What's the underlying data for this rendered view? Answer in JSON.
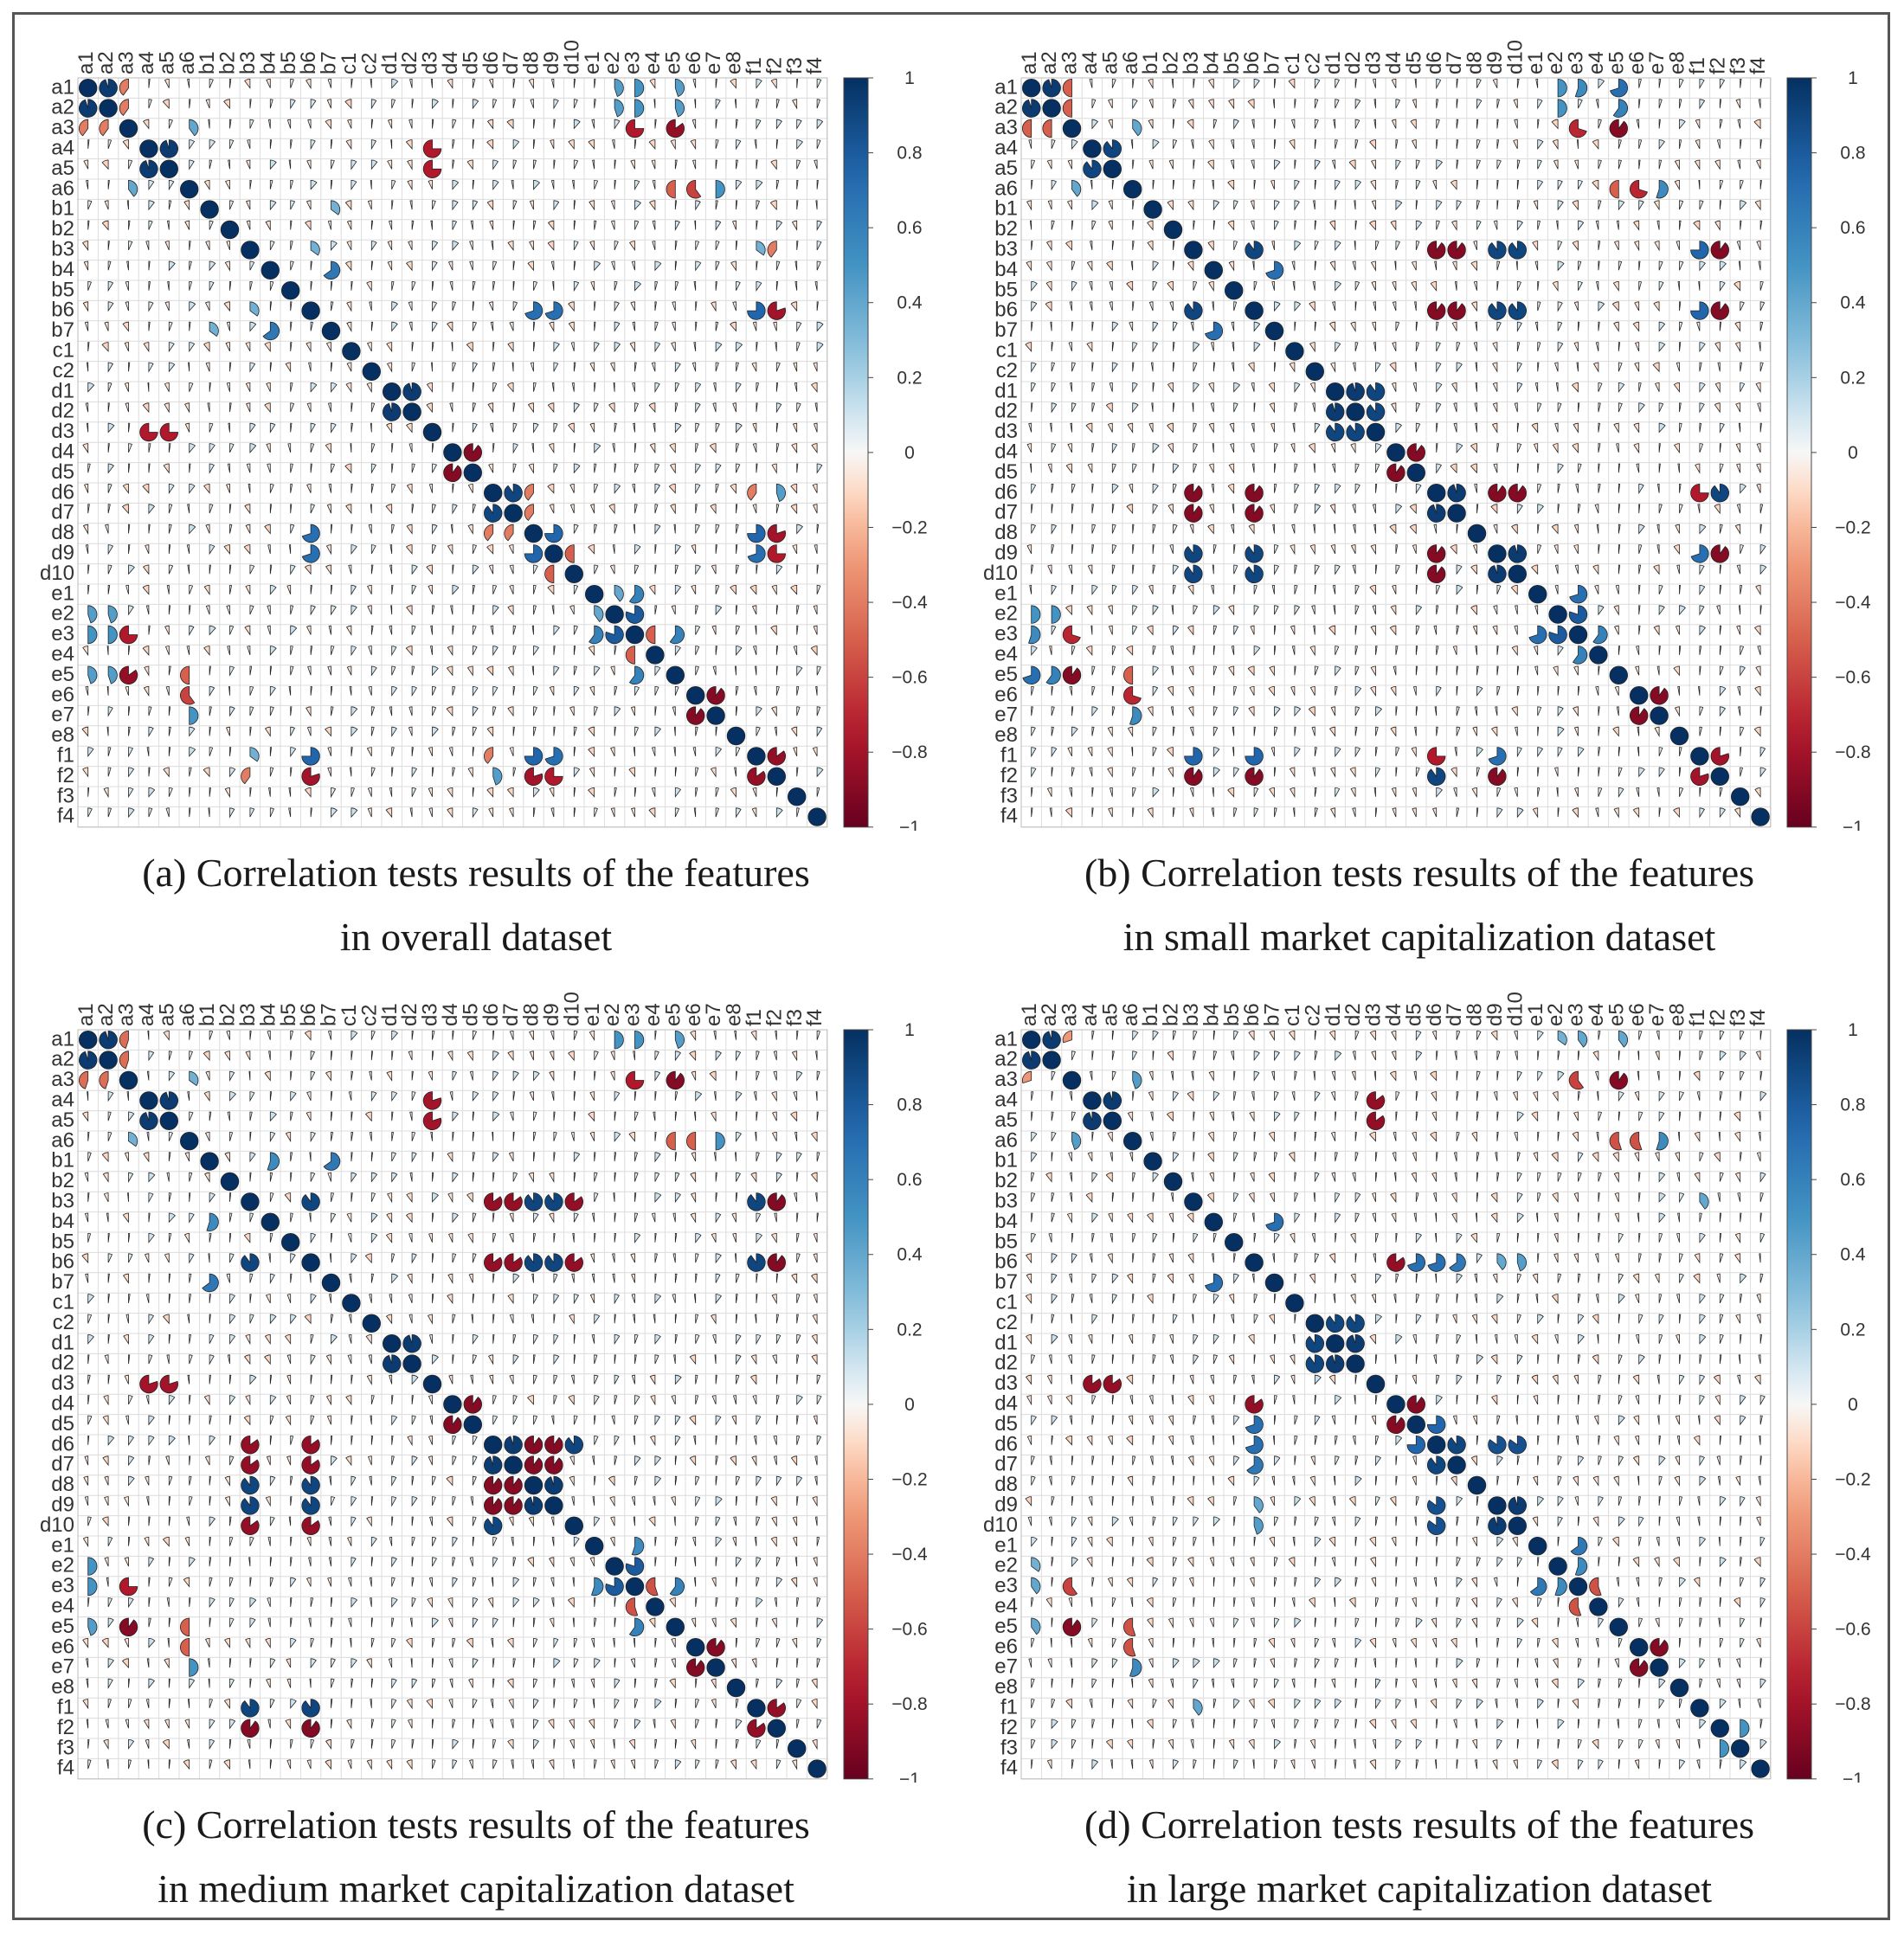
{
  "figure": {
    "features": [
      "a1",
      "a2",
      "a3",
      "a4",
      "a5",
      "a6",
      "b1",
      "b2",
      "b3",
      "b4",
      "b5",
      "b6",
      "b7",
      "c1",
      "c2",
      "d1",
      "d2",
      "d3",
      "d4",
      "d5",
      "d6",
      "d7",
      "d8",
      "d9",
      "d10",
      "e1",
      "e2",
      "e3",
      "e4",
      "e5",
      "e6",
      "e7",
      "e8",
      "f1",
      "f2",
      "f3",
      "f4"
    ],
    "colorbar_ticks": [
      "1",
      "0.8",
      "0.6",
      "0.4",
      "0.2",
      "0",
      "−0.2",
      "−0.4",
      "−0.6",
      "−0.8",
      "−1"
    ],
    "colorbar_colors": {
      "positive": "#053061",
      "neutral": "#f7f7f7",
      "negative": "#67001f"
    }
  },
  "chart_data": [
    {
      "type": "heatmap",
      "id": "a",
      "caption_line1": "(a) Correlation tests results of the features",
      "caption_line2": "in overall dataset",
      "value_range": [
        -1,
        1
      ],
      "correlations": [
        {
          "row": "a1",
          "col": "a2",
          "value": 0.95
        },
        {
          "row": "a1",
          "col": "a3",
          "value": -0.4
        },
        {
          "row": "a1",
          "col": "e2",
          "value": 0.45
        },
        {
          "row": "a1",
          "col": "e3",
          "value": 0.5
        },
        {
          "row": "a1",
          "col": "e5",
          "value": 0.45
        },
        {
          "row": "a2",
          "col": "a3",
          "value": -0.4
        },
        {
          "row": "a2",
          "col": "e2",
          "value": 0.45
        },
        {
          "row": "a2",
          "col": "e3",
          "value": 0.5
        },
        {
          "row": "a2",
          "col": "e5",
          "value": 0.45
        },
        {
          "row": "a3",
          "col": "a6",
          "value": 0.4
        },
        {
          "row": "a3",
          "col": "e3",
          "value": -0.75
        },
        {
          "row": "a3",
          "col": "e5",
          "value": -0.85
        },
        {
          "row": "a4",
          "col": "a5",
          "value": 0.95
        },
        {
          "row": "a4",
          "col": "d3",
          "value": -0.75
        },
        {
          "row": "a5",
          "col": "d3",
          "value": -0.75
        },
        {
          "row": "a6",
          "col": "e5",
          "value": -0.5
        },
        {
          "row": "a6",
          "col": "e6",
          "value": -0.6
        },
        {
          "row": "a6",
          "col": "e7",
          "value": 0.5
        },
        {
          "row": "b1",
          "col": "b7",
          "value": 0.35
        },
        {
          "row": "b3",
          "col": "b6",
          "value": 0.35
        },
        {
          "row": "b3",
          "col": "f1",
          "value": 0.35
        },
        {
          "row": "b3",
          "col": "f2",
          "value": -0.4
        },
        {
          "row": "b4",
          "col": "b7",
          "value": 0.65
        },
        {
          "row": "b6",
          "col": "d8",
          "value": 0.7
        },
        {
          "row": "b6",
          "col": "d9",
          "value": 0.7
        },
        {
          "row": "b6",
          "col": "f1",
          "value": 0.75
        },
        {
          "row": "b6",
          "col": "f2",
          "value": -0.8
        },
        {
          "row": "d1",
          "col": "d2",
          "value": 0.95
        },
        {
          "row": "d4",
          "col": "d5",
          "value": -0.9
        },
        {
          "row": "d6",
          "col": "d7",
          "value": 0.9
        },
        {
          "row": "d6",
          "col": "d8",
          "value": -0.4
        },
        {
          "row": "d6",
          "col": "f1",
          "value": -0.4
        },
        {
          "row": "d6",
          "col": "f2",
          "value": 0.45
        },
        {
          "row": "d7",
          "col": "d8",
          "value": -0.4
        },
        {
          "row": "d8",
          "col": "d9",
          "value": 0.75
        },
        {
          "row": "d8",
          "col": "f1",
          "value": 0.75
        },
        {
          "row": "d8",
          "col": "f2",
          "value": -0.8
        },
        {
          "row": "d9",
          "col": "d10",
          "value": -0.5
        },
        {
          "row": "d9",
          "col": "f1",
          "value": 0.7
        },
        {
          "row": "d9",
          "col": "f2",
          "value": -0.75
        },
        {
          "row": "e1",
          "col": "e2",
          "value": 0.4
        },
        {
          "row": "e1",
          "col": "e3",
          "value": 0.6
        },
        {
          "row": "e2",
          "col": "e3",
          "value": 0.8
        },
        {
          "row": "e3",
          "col": "e4",
          "value": -0.5
        },
        {
          "row": "e3",
          "col": "e5",
          "value": 0.6
        },
        {
          "row": "e6",
          "col": "e7",
          "value": -0.9
        },
        {
          "row": "f1",
          "col": "f2",
          "value": -0.85
        }
      ]
    },
    {
      "type": "heatmap",
      "id": "b",
      "caption_line1": "(b) Correlation tests results of the features",
      "caption_line2": "in small market capitalization dataset",
      "value_range": [
        -1,
        1
      ],
      "correlations": [
        {
          "row": "a1",
          "col": "a2",
          "value": 0.95
        },
        {
          "row": "a1",
          "col": "a3",
          "value": -0.5
        },
        {
          "row": "a1",
          "col": "e2",
          "value": 0.5
        },
        {
          "row": "a1",
          "col": "e3",
          "value": 0.55
        },
        {
          "row": "a1",
          "col": "e5",
          "value": 0.7
        },
        {
          "row": "a2",
          "col": "a3",
          "value": -0.5
        },
        {
          "row": "a2",
          "col": "e2",
          "value": 0.5
        },
        {
          "row": "a2",
          "col": "e5",
          "value": 0.6
        },
        {
          "row": "a3",
          "col": "a6",
          "value": 0.4
        },
        {
          "row": "a3",
          "col": "e3",
          "value": -0.7
        },
        {
          "row": "a3",
          "col": "e5",
          "value": -0.9
        },
        {
          "row": "a4",
          "col": "a5",
          "value": 0.9
        },
        {
          "row": "a6",
          "col": "e5",
          "value": -0.5
        },
        {
          "row": "a6",
          "col": "e6",
          "value": -0.7
        },
        {
          "row": "a6",
          "col": "e7",
          "value": 0.55
        },
        {
          "row": "b3",
          "col": "b6",
          "value": 0.9
        },
        {
          "row": "b3",
          "col": "d6",
          "value": -0.9
        },
        {
          "row": "b3",
          "col": "d7",
          "value": -0.9
        },
        {
          "row": "b3",
          "col": "d9",
          "value": 0.9
        },
        {
          "row": "b3",
          "col": "d10",
          "value": 0.9
        },
        {
          "row": "b3",
          "col": "f1",
          "value": 0.75
        },
        {
          "row": "b3",
          "col": "f2",
          "value": -0.9
        },
        {
          "row": "b4",
          "col": "b7",
          "value": 0.7
        },
        {
          "row": "b6",
          "col": "d6",
          "value": -0.9
        },
        {
          "row": "b6",
          "col": "d7",
          "value": -0.9
        },
        {
          "row": "b6",
          "col": "d9",
          "value": 0.9
        },
        {
          "row": "b6",
          "col": "d10",
          "value": 0.9
        },
        {
          "row": "b6",
          "col": "f1",
          "value": 0.75
        },
        {
          "row": "b6",
          "col": "f2",
          "value": -0.9
        },
        {
          "row": "d1",
          "col": "d2",
          "value": 0.95
        },
        {
          "row": "d1",
          "col": "d3",
          "value": 0.9
        },
        {
          "row": "d2",
          "col": "d3",
          "value": 0.9
        },
        {
          "row": "d4",
          "col": "d5",
          "value": -0.9
        },
        {
          "row": "d6",
          "col": "d7",
          "value": 0.95
        },
        {
          "row": "d6",
          "col": "d9",
          "value": -0.9
        },
        {
          "row": "d6",
          "col": "d10",
          "value": -0.9
        },
        {
          "row": "d6",
          "col": "f1",
          "value": -0.75
        },
        {
          "row": "d6",
          "col": "f2",
          "value": 0.9
        },
        {
          "row": "d9",
          "col": "d10",
          "value": 0.95
        },
        {
          "row": "d9",
          "col": "f1",
          "value": 0.7
        },
        {
          "row": "d9",
          "col": "f2",
          "value": -0.9
        },
        {
          "row": "e1",
          "col": "e3",
          "value": 0.7
        },
        {
          "row": "e2",
          "col": "e3",
          "value": 0.8
        },
        {
          "row": "e3",
          "col": "e4",
          "value": 0.6
        },
        {
          "row": "e6",
          "col": "e7",
          "value": -0.9
        },
        {
          "row": "f1",
          "col": "f2",
          "value": -0.8
        }
      ]
    },
    {
      "type": "heatmap",
      "id": "c",
      "caption_line1": "(c) Correlation tests results of the features",
      "caption_line2": "in medium market capitalization dataset",
      "value_range": [
        -1,
        1
      ],
      "correlations": [
        {
          "row": "a1",
          "col": "a2",
          "value": 0.95
        },
        {
          "row": "a1",
          "col": "a3",
          "value": -0.45
        },
        {
          "row": "a1",
          "col": "e2",
          "value": 0.5
        },
        {
          "row": "a1",
          "col": "e3",
          "value": 0.5
        },
        {
          "row": "a1",
          "col": "e5",
          "value": 0.45
        },
        {
          "row": "a2",
          "col": "a3",
          "value": -0.45
        },
        {
          "row": "a3",
          "col": "a6",
          "value": 0.35
        },
        {
          "row": "a3",
          "col": "e3",
          "value": -0.75
        },
        {
          "row": "a3",
          "col": "e5",
          "value": -0.9
        },
        {
          "row": "a4",
          "col": "a5",
          "value": 0.95
        },
        {
          "row": "a4",
          "col": "d3",
          "value": -0.8
        },
        {
          "row": "a5",
          "col": "d3",
          "value": -0.8
        },
        {
          "row": "a6",
          "col": "e5",
          "value": -0.5
        },
        {
          "row": "a6",
          "col": "e6",
          "value": -0.5
        },
        {
          "row": "a6",
          "col": "e7",
          "value": 0.5
        },
        {
          "row": "b1",
          "col": "b4",
          "value": 0.55
        },
        {
          "row": "b1",
          "col": "b7",
          "value": 0.65
        },
        {
          "row": "b3",
          "col": "b6",
          "value": 0.9
        },
        {
          "row": "b3",
          "col": "d6",
          "value": -0.85
        },
        {
          "row": "b3",
          "col": "d7",
          "value": -0.85
        },
        {
          "row": "b3",
          "col": "d8",
          "value": 0.9
        },
        {
          "row": "b3",
          "col": "d9",
          "value": 0.9
        },
        {
          "row": "b3",
          "col": "d10",
          "value": -0.85
        },
        {
          "row": "b3",
          "col": "f1",
          "value": 0.9
        },
        {
          "row": "b3",
          "col": "f2",
          "value": -0.9
        },
        {
          "row": "b6",
          "col": "d6",
          "value": -0.85
        },
        {
          "row": "b6",
          "col": "d7",
          "value": -0.85
        },
        {
          "row": "b6",
          "col": "d8",
          "value": 0.9
        },
        {
          "row": "b6",
          "col": "d9",
          "value": 0.9
        },
        {
          "row": "b6",
          "col": "d10",
          "value": -0.85
        },
        {
          "row": "b6",
          "col": "f1",
          "value": 0.9
        },
        {
          "row": "b6",
          "col": "f2",
          "value": -0.9
        },
        {
          "row": "d1",
          "col": "d2",
          "value": 0.95
        },
        {
          "row": "d4",
          "col": "d5",
          "value": -0.9
        },
        {
          "row": "d6",
          "col": "d7",
          "value": 0.95
        },
        {
          "row": "d6",
          "col": "d8",
          "value": -0.9
        },
        {
          "row": "d6",
          "col": "d9",
          "value": -0.9
        },
        {
          "row": "d6",
          "col": "d10",
          "value": 0.9
        },
        {
          "row": "d7",
          "col": "d8",
          "value": -0.9
        },
        {
          "row": "d7",
          "col": "d9",
          "value": -0.9
        },
        {
          "row": "d8",
          "col": "d9",
          "value": 0.95
        },
        {
          "row": "e1",
          "col": "e3",
          "value": 0.55
        },
        {
          "row": "e2",
          "col": "e3",
          "value": 0.8
        },
        {
          "row": "e3",
          "col": "e4",
          "value": -0.55
        },
        {
          "row": "e3",
          "col": "e5",
          "value": 0.6
        },
        {
          "row": "e6",
          "col": "e7",
          "value": -0.9
        },
        {
          "row": "f1",
          "col": "f2",
          "value": -0.85
        }
      ]
    },
    {
      "type": "heatmap",
      "id": "d",
      "caption_line1": "(d) Correlation tests results of the features",
      "caption_line2": "in large market capitalization dataset",
      "value_range": [
        -1,
        1
      ],
      "correlations": [
        {
          "row": "a1",
          "col": "a2",
          "value": 0.95
        },
        {
          "row": "a1",
          "col": "a3",
          "value": -0.3
        },
        {
          "row": "a1",
          "col": "e2",
          "value": 0.35
        },
        {
          "row": "a1",
          "col": "e3",
          "value": 0.4
        },
        {
          "row": "a1",
          "col": "e5",
          "value": 0.4
        },
        {
          "row": "a3",
          "col": "a6",
          "value": 0.45
        },
        {
          "row": "a3",
          "col": "e3",
          "value": -0.6
        },
        {
          "row": "a3",
          "col": "e5",
          "value": -0.9
        },
        {
          "row": "a4",
          "col": "a5",
          "value": 0.95
        },
        {
          "row": "a4",
          "col": "d3",
          "value": -0.85
        },
        {
          "row": "a5",
          "col": "d3",
          "value": -0.85
        },
        {
          "row": "a6",
          "col": "e5",
          "value": -0.55
        },
        {
          "row": "a6",
          "col": "e6",
          "value": -0.55
        },
        {
          "row": "a6",
          "col": "e7",
          "value": 0.55
        },
        {
          "row": "b3",
          "col": "f1",
          "value": 0.4
        },
        {
          "row": "b4",
          "col": "b7",
          "value": 0.7
        },
        {
          "row": "b6",
          "col": "d4",
          "value": -0.85
        },
        {
          "row": "b6",
          "col": "d5",
          "value": 0.7
        },
        {
          "row": "b6",
          "col": "d6",
          "value": 0.7
        },
        {
          "row": "b6",
          "col": "d7",
          "value": 0.65
        },
        {
          "row": "b6",
          "col": "d9",
          "value": 0.4
        },
        {
          "row": "b6",
          "col": "d10",
          "value": 0.45
        },
        {
          "row": "c2",
          "col": "d1",
          "value": 0.9
        },
        {
          "row": "c2",
          "col": "d2",
          "value": 0.9
        },
        {
          "row": "d1",
          "col": "d2",
          "value": 0.95
        },
        {
          "row": "d4",
          "col": "d5",
          "value": -0.9
        },
        {
          "row": "d5",
          "col": "d6",
          "value": 0.75
        },
        {
          "row": "d6",
          "col": "d7",
          "value": 0.9
        },
        {
          "row": "d6",
          "col": "d9",
          "value": 0.85
        },
        {
          "row": "d6",
          "col": "d10",
          "value": 0.85
        },
        {
          "row": "d9",
          "col": "d10",
          "value": 0.95
        },
        {
          "row": "e1",
          "col": "e3",
          "value": 0.65
        },
        {
          "row": "e2",
          "col": "e3",
          "value": 0.55
        },
        {
          "row": "e3",
          "col": "e4",
          "value": -0.55
        },
        {
          "row": "e6",
          "col": "e7",
          "value": -0.9
        },
        {
          "row": "f2",
          "col": "f3",
          "value": 0.5
        }
      ]
    }
  ]
}
